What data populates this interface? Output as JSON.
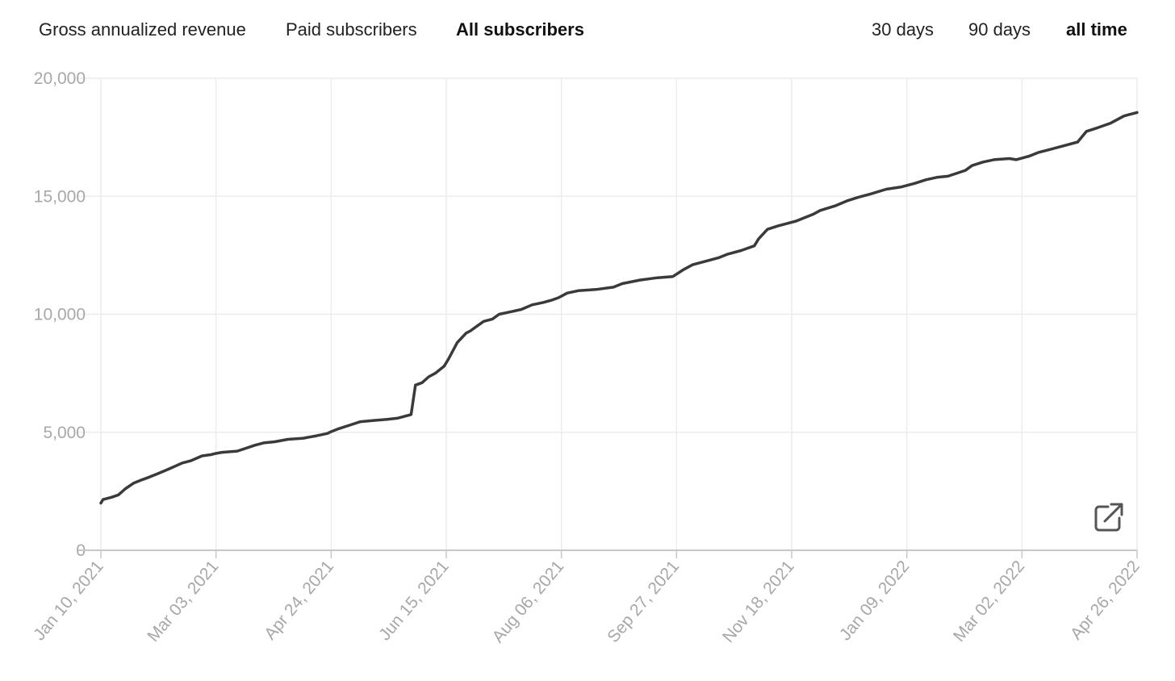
{
  "tabs": {
    "metrics": [
      {
        "label": "Gross annualized revenue",
        "active": false
      },
      {
        "label": "Paid subscribers",
        "active": false
      },
      {
        "label": "All subscribers",
        "active": true
      }
    ],
    "ranges": [
      {
        "label": "30 days",
        "active": false
      },
      {
        "label": "90 days",
        "active": false
      },
      {
        "label": "all time",
        "active": true
      }
    ]
  },
  "expand_button": {
    "icon": "external-link-icon"
  },
  "colors": {
    "line": "#3a3a3a",
    "grid": "#ececec",
    "axis": "#c8c8c8",
    "tick_text": "#a8a8a8"
  },
  "chart_data": {
    "type": "line",
    "title": "",
    "xlabel": "",
    "ylabel": "",
    "ylim": [
      0,
      20000
    ],
    "yticks": [
      0,
      5000,
      10000,
      15000,
      20000
    ],
    "ytick_labels": [
      "0",
      "5,000",
      "10,000",
      "15,000",
      "20,000"
    ],
    "xlim": [
      "2021-01-10",
      "2022-04-26"
    ],
    "xtick_labels": [
      "Jan 10, 2021",
      "Mar 03, 2021",
      "Apr 24, 2021",
      "Jun 15, 2021",
      "Aug 06, 2021",
      "Sep 27, 2021",
      "Nov 18, 2021",
      "Jan 09, 2022",
      "Mar 02, 2022",
      "Apr 26, 2022"
    ],
    "grid": true,
    "legend": "none",
    "series": [
      {
        "x": [
          "2021-01-10",
          "2021-01-11",
          "2021-01-15",
          "2021-01-18",
          "2021-01-21",
          "2021-01-25",
          "2021-01-29",
          "2021-02-01",
          "2021-02-05",
          "2021-02-10",
          "2021-02-16",
          "2021-02-20",
          "2021-02-25",
          "2021-03-01",
          "2021-03-03",
          "2021-03-06",
          "2021-03-13",
          "2021-03-21",
          "2021-03-25",
          "2021-03-30",
          "2021-04-05",
          "2021-04-12",
          "2021-04-18",
          "2021-04-23",
          "2021-04-24",
          "2021-04-28",
          "2021-05-03",
          "2021-05-08",
          "2021-05-14",
          "2021-05-20",
          "2021-05-25",
          "2021-05-31",
          "2021-06-02",
          "2021-06-05",
          "2021-06-08",
          "2021-06-11",
          "2021-06-15",
          "2021-06-17",
          "2021-06-21",
          "2021-06-25",
          "2021-06-27",
          "2021-06-30",
          "2021-07-03",
          "2021-07-07",
          "2021-07-10",
          "2021-07-15",
          "2021-07-20",
          "2021-07-25",
          "2021-07-30",
          "2021-08-03",
          "2021-08-06",
          "2021-08-10",
          "2021-08-15",
          "2021-08-23",
          "2021-08-31",
          "2021-09-04",
          "2021-09-12",
          "2021-09-20",
          "2021-09-27",
          "2021-10-02",
          "2021-10-06",
          "2021-10-12",
          "2021-10-18",
          "2021-10-22",
          "2021-10-28",
          "2021-11-03",
          "2021-11-05",
          "2021-11-09",
          "2021-11-14",
          "2021-11-18",
          "2021-11-22",
          "2021-11-30",
          "2021-12-03",
          "2021-12-10",
          "2021-12-15",
          "2021-12-20",
          "2021-12-26",
          "2022-01-02",
          "2022-01-09",
          "2022-01-15",
          "2022-01-20",
          "2022-01-25",
          "2022-01-30",
          "2022-02-07",
          "2022-02-10",
          "2022-02-15",
          "2022-02-20",
          "2022-02-27",
          "2022-03-02",
          "2022-03-08",
          "2022-03-12",
          "2022-03-18",
          "2022-03-24",
          "2022-03-30",
          "2022-04-03",
          "2022-04-08",
          "2022-04-14",
          "2022-04-20",
          "2022-04-26"
        ],
        "y": [
          2000,
          2150,
          2250,
          2350,
          2600,
          2850,
          3000,
          3100,
          3250,
          3450,
          3700,
          3800,
          4000,
          4050,
          4100,
          4150,
          4200,
          4450,
          4550,
          4600,
          4700,
          4750,
          4850,
          4950,
          5000,
          5150,
          5300,
          5450,
          5500,
          5550,
          5600,
          5750,
          7000,
          7100,
          7350,
          7500,
          7800,
          8100,
          8800,
          9200,
          9300,
          9500,
          9700,
          9800,
          10000,
          10100,
          10200,
          10400,
          10500,
          10600,
          10700,
          10900,
          11000,
          11050,
          11150,
          11300,
          11450,
          11550,
          11600,
          11900,
          12100,
          12250,
          12400,
          12550,
          12700,
          12900,
          13200,
          13600,
          13750,
          13850,
          13950,
          14250,
          14400,
          14600,
          14800,
          14950,
          15100,
          15300,
          15400,
          15550,
          15700,
          15800,
          15850,
          16100,
          16300,
          16450,
          16550,
          16600,
          16550,
          16700,
          16850,
          17000,
          17150,
          17300,
          17750,
          17900,
          18100,
          18400,
          18550
        ]
      }
    ]
  }
}
